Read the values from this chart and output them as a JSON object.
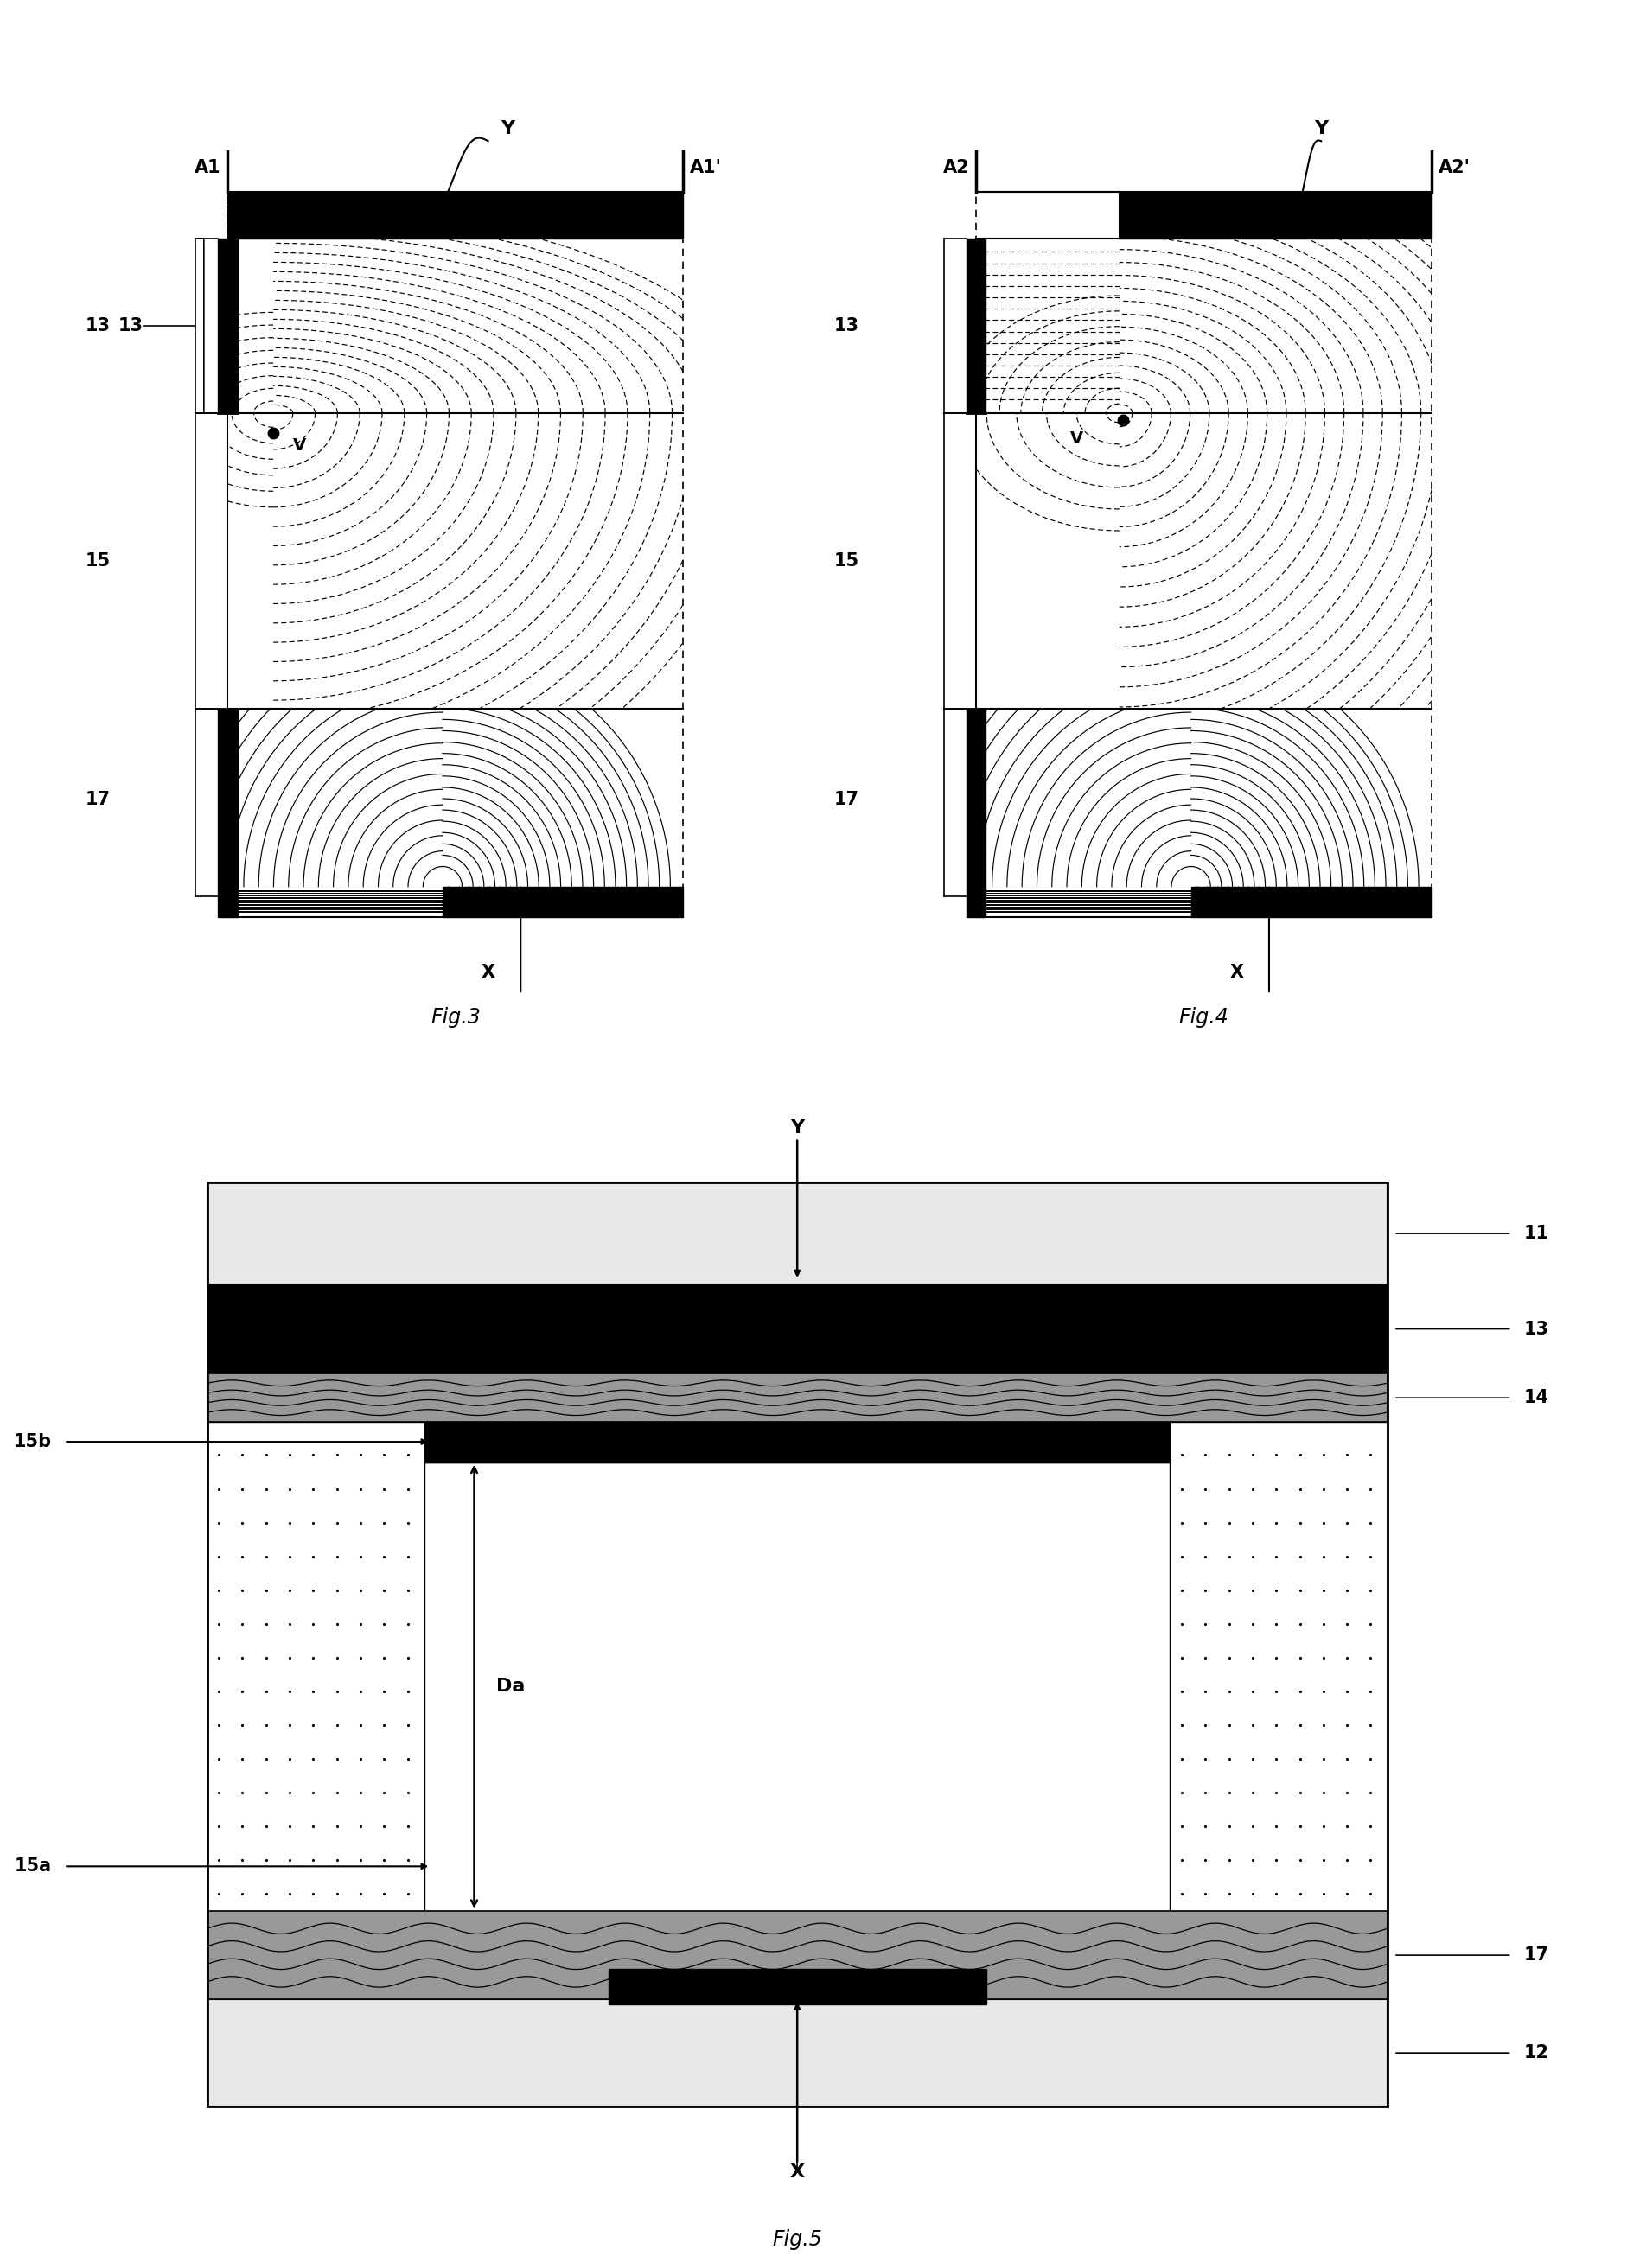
{
  "fig3_label": "Fig.3",
  "fig4_label": "Fig.4",
  "fig5_label": "Fig.5",
  "bg_color": "#ffffff",
  "fs_bold": 15,
  "fs_fig": 17
}
